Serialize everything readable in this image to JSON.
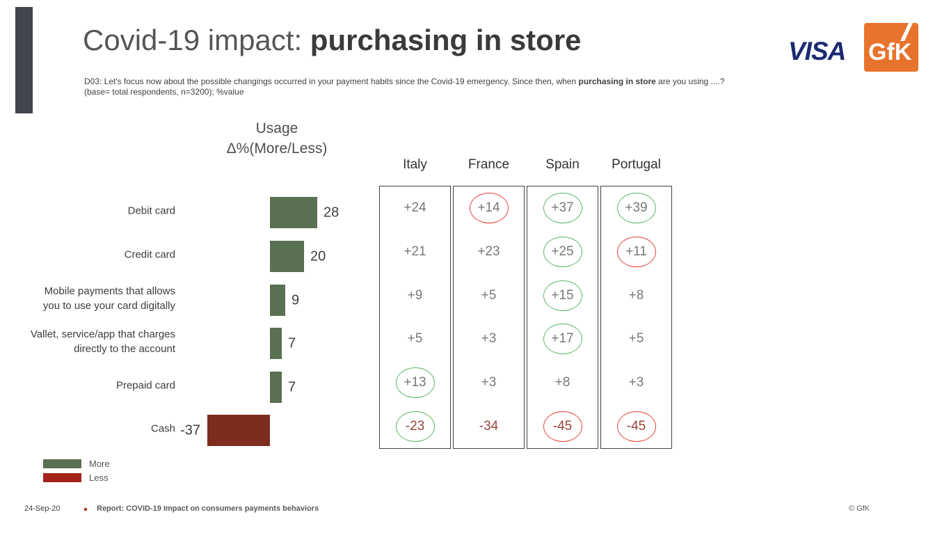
{
  "slide": {
    "title": {
      "light": "Covid-19 impact: ",
      "bold": "purchasing in store"
    },
    "question": {
      "prefix": "D03: Let's focus now about the possible changings occurred in your payment habits since the Covid-19 emergency. Since then, when ",
      "bold": "purchasing in store",
      "suffix": "  are you using ....?",
      "line2": "(base= total respondents, n=3200); %value"
    },
    "date": "24-Sep-20",
    "report": "Report: COVID-19 Impact on consumers payments behaviors",
    "copyright": "© GfK"
  },
  "logos": {
    "visa": "VISA",
    "gfk": "GfK"
  },
  "chart_data": {
    "type": "bar",
    "orientation": "horizontal",
    "title": "Usage\nΔ%(More/Less)",
    "categories": [
      "Debit card",
      "Credit card",
      "Mobile payments that allows\nyou to use your card digitally",
      "Vallet, service/app that charges\ndirectly to the account",
      "Prepaid card",
      "Cash"
    ],
    "values": [
      28,
      20,
      9,
      7,
      7,
      -37
    ],
    "value_labels": [
      "28",
      "20",
      "9",
      "7",
      "7",
      "-37"
    ],
    "xlim": [
      -45,
      30
    ],
    "bar_colors": {
      "positive": "#5a7052",
      "negative": "#7d2d1d"
    },
    "legend": [
      {
        "label": "More",
        "color": "#5a7052"
      },
      {
        "label": "Less",
        "color": "#a3231a"
      }
    ]
  },
  "table": {
    "columns": [
      "Italy",
      "France",
      "Spain",
      "Portugal"
    ],
    "rows": [
      {
        "category": "Debit card",
        "values": [
          "+24",
          "+14",
          "+37",
          "+39"
        ],
        "circles": [
          null,
          "red",
          "green",
          "green"
        ]
      },
      {
        "category": "Credit card",
        "values": [
          "+21",
          "+23",
          "+25",
          "+11"
        ],
        "circles": [
          null,
          null,
          "green",
          "red"
        ]
      },
      {
        "category": "Mobile payments",
        "values": [
          "+9",
          "+5",
          "+15",
          "+8"
        ],
        "circles": [
          null,
          null,
          "green",
          null
        ]
      },
      {
        "category": "Wallet",
        "values": [
          "+5",
          "+3",
          "+17",
          "+5"
        ],
        "circles": [
          null,
          null,
          "green",
          null
        ]
      },
      {
        "category": "Prepaid card",
        "values": [
          "+13",
          "+3",
          "+8",
          "+3"
        ],
        "circles": [
          "green",
          null,
          null,
          null
        ]
      },
      {
        "category": "Cash",
        "values": [
          "-23",
          "-34",
          "-45",
          "-45"
        ],
        "circles": [
          "green",
          null,
          "red",
          "red"
        ]
      }
    ],
    "circle_colors": {
      "green": "#5fb567",
      "red": "#e2453c"
    }
  },
  "colors": {
    "accent_bar": "#41464e",
    "visa_navy": "#1b2a71",
    "gfk_orange": "#e8732c",
    "negative_text": "#96453a"
  }
}
